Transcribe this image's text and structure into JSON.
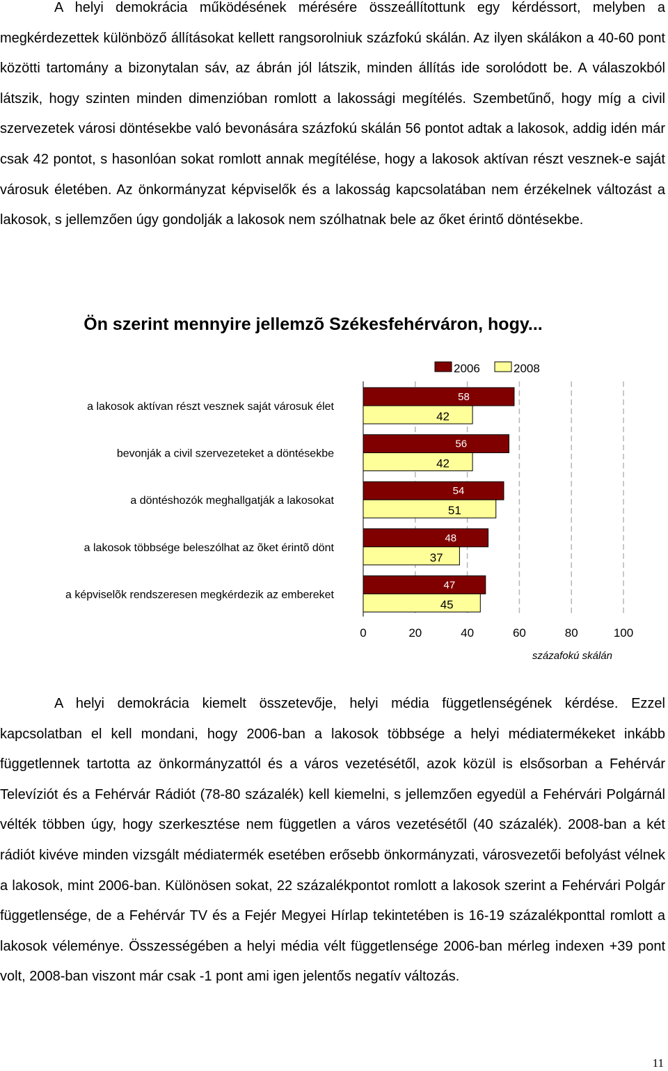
{
  "paragraph_1": "A helyi demokrácia működésének mérésére összeállítottunk egy kérdéssort, melyben a megkérdezettek különböző állításokat kellett rangsorolniuk százfokú skálán. Az ilyen skálákon a 40-60 pont közötti tartomány a bizonytalan sáv, az ábrán jól látszik, minden állítás ide sorolódott be. A válaszokból látszik, hogy szinten minden dimenzióban romlott a lakossági megítélés. Szembetűnő, hogy míg a civil szervezetek városi döntésekbe való bevonására százfokú skálán 56 pontot adtak a lakosok, addig idén már csak 42 pontot, s hasonlóan sokat romlott annak megítélése, hogy a lakosok aktívan részt vesznek-e saját városuk életében. Az önkormányzat képviselők és a lakosság kapcsolatában nem érzékelnek változást a lakosok, s jellemzően úgy gondolják a lakosok nem szólhatnak bele az őket érintő döntésekbe.",
  "paragraph_2": "A helyi demokrácia kiemelt összetevője, helyi média függetlenségének kérdése. Ezzel kapcsolatban el kell mondani, hogy 2006-ban a lakosok többsége a helyi médiatermékeket inkább függetlennek tartotta az önkormányzattól és a város vezetésétől, azok közül is elsősorban a Fehérvár Televíziót és a Fehérvár Rádiót (78-80 százalék) kell kiemelni, s jellemzően egyedül a Fehérvári Polgárnál vélték többen úgy, hogy szerkesztése nem független a város vezetésétől (40 százalék). 2008-ban a két rádiót kivéve minden vizsgált médiatermék esetében erősebb önkormányzati, városvezetői befolyást vélnek a lakosok, mint 2006-ban. Különösen sokat, 22 százalékpontot romlott a lakosok szerint a Fehérvári Polgár függetlensége, de a Fehérvár TV és a Fejér Megyei Hírlap tekintetében is 16-19 százalékponttal romlott a lakosok véleménye. Összességében a helyi média vélt függetlensége 2006-ban mérleg indexen +39 pont volt, 2008-ban viszont már csak -1 pont ami igen jelentős negatív változás.",
  "page_number": "11",
  "chart_data": {
    "type": "bar",
    "orientation": "horizontal",
    "title": "Ön szerint mennyire jellemzõ Székesfehérváron, hogy...",
    "xlabel": "százafokú skálán",
    "ylabel": "",
    "xlim": [
      0,
      100
    ],
    "x_ticks": [
      "0",
      "20",
      "40",
      "60",
      "80",
      "100"
    ],
    "grid": "vertical dashed",
    "legend_position": "top-right",
    "categories": [
      "a lakosok aktívan részt vesznek saját városuk élet",
      "bevonják a civil szervezeteket a döntésekbe",
      "a döntéshozók meghallgatják a lakosokat",
      "a lakosok többsége beleszólhat az õket érintõ dönt",
      "a képviselõk rendszeresen megkérdezik az embereket"
    ],
    "series": [
      {
        "name": "2006",
        "color": "#800000",
        "values": [
          58,
          56,
          54,
          48,
          47
        ]
      },
      {
        "name": "2008",
        "color": "#ffff99",
        "values": [
          42,
          42,
          51,
          37,
          45
        ]
      }
    ]
  }
}
